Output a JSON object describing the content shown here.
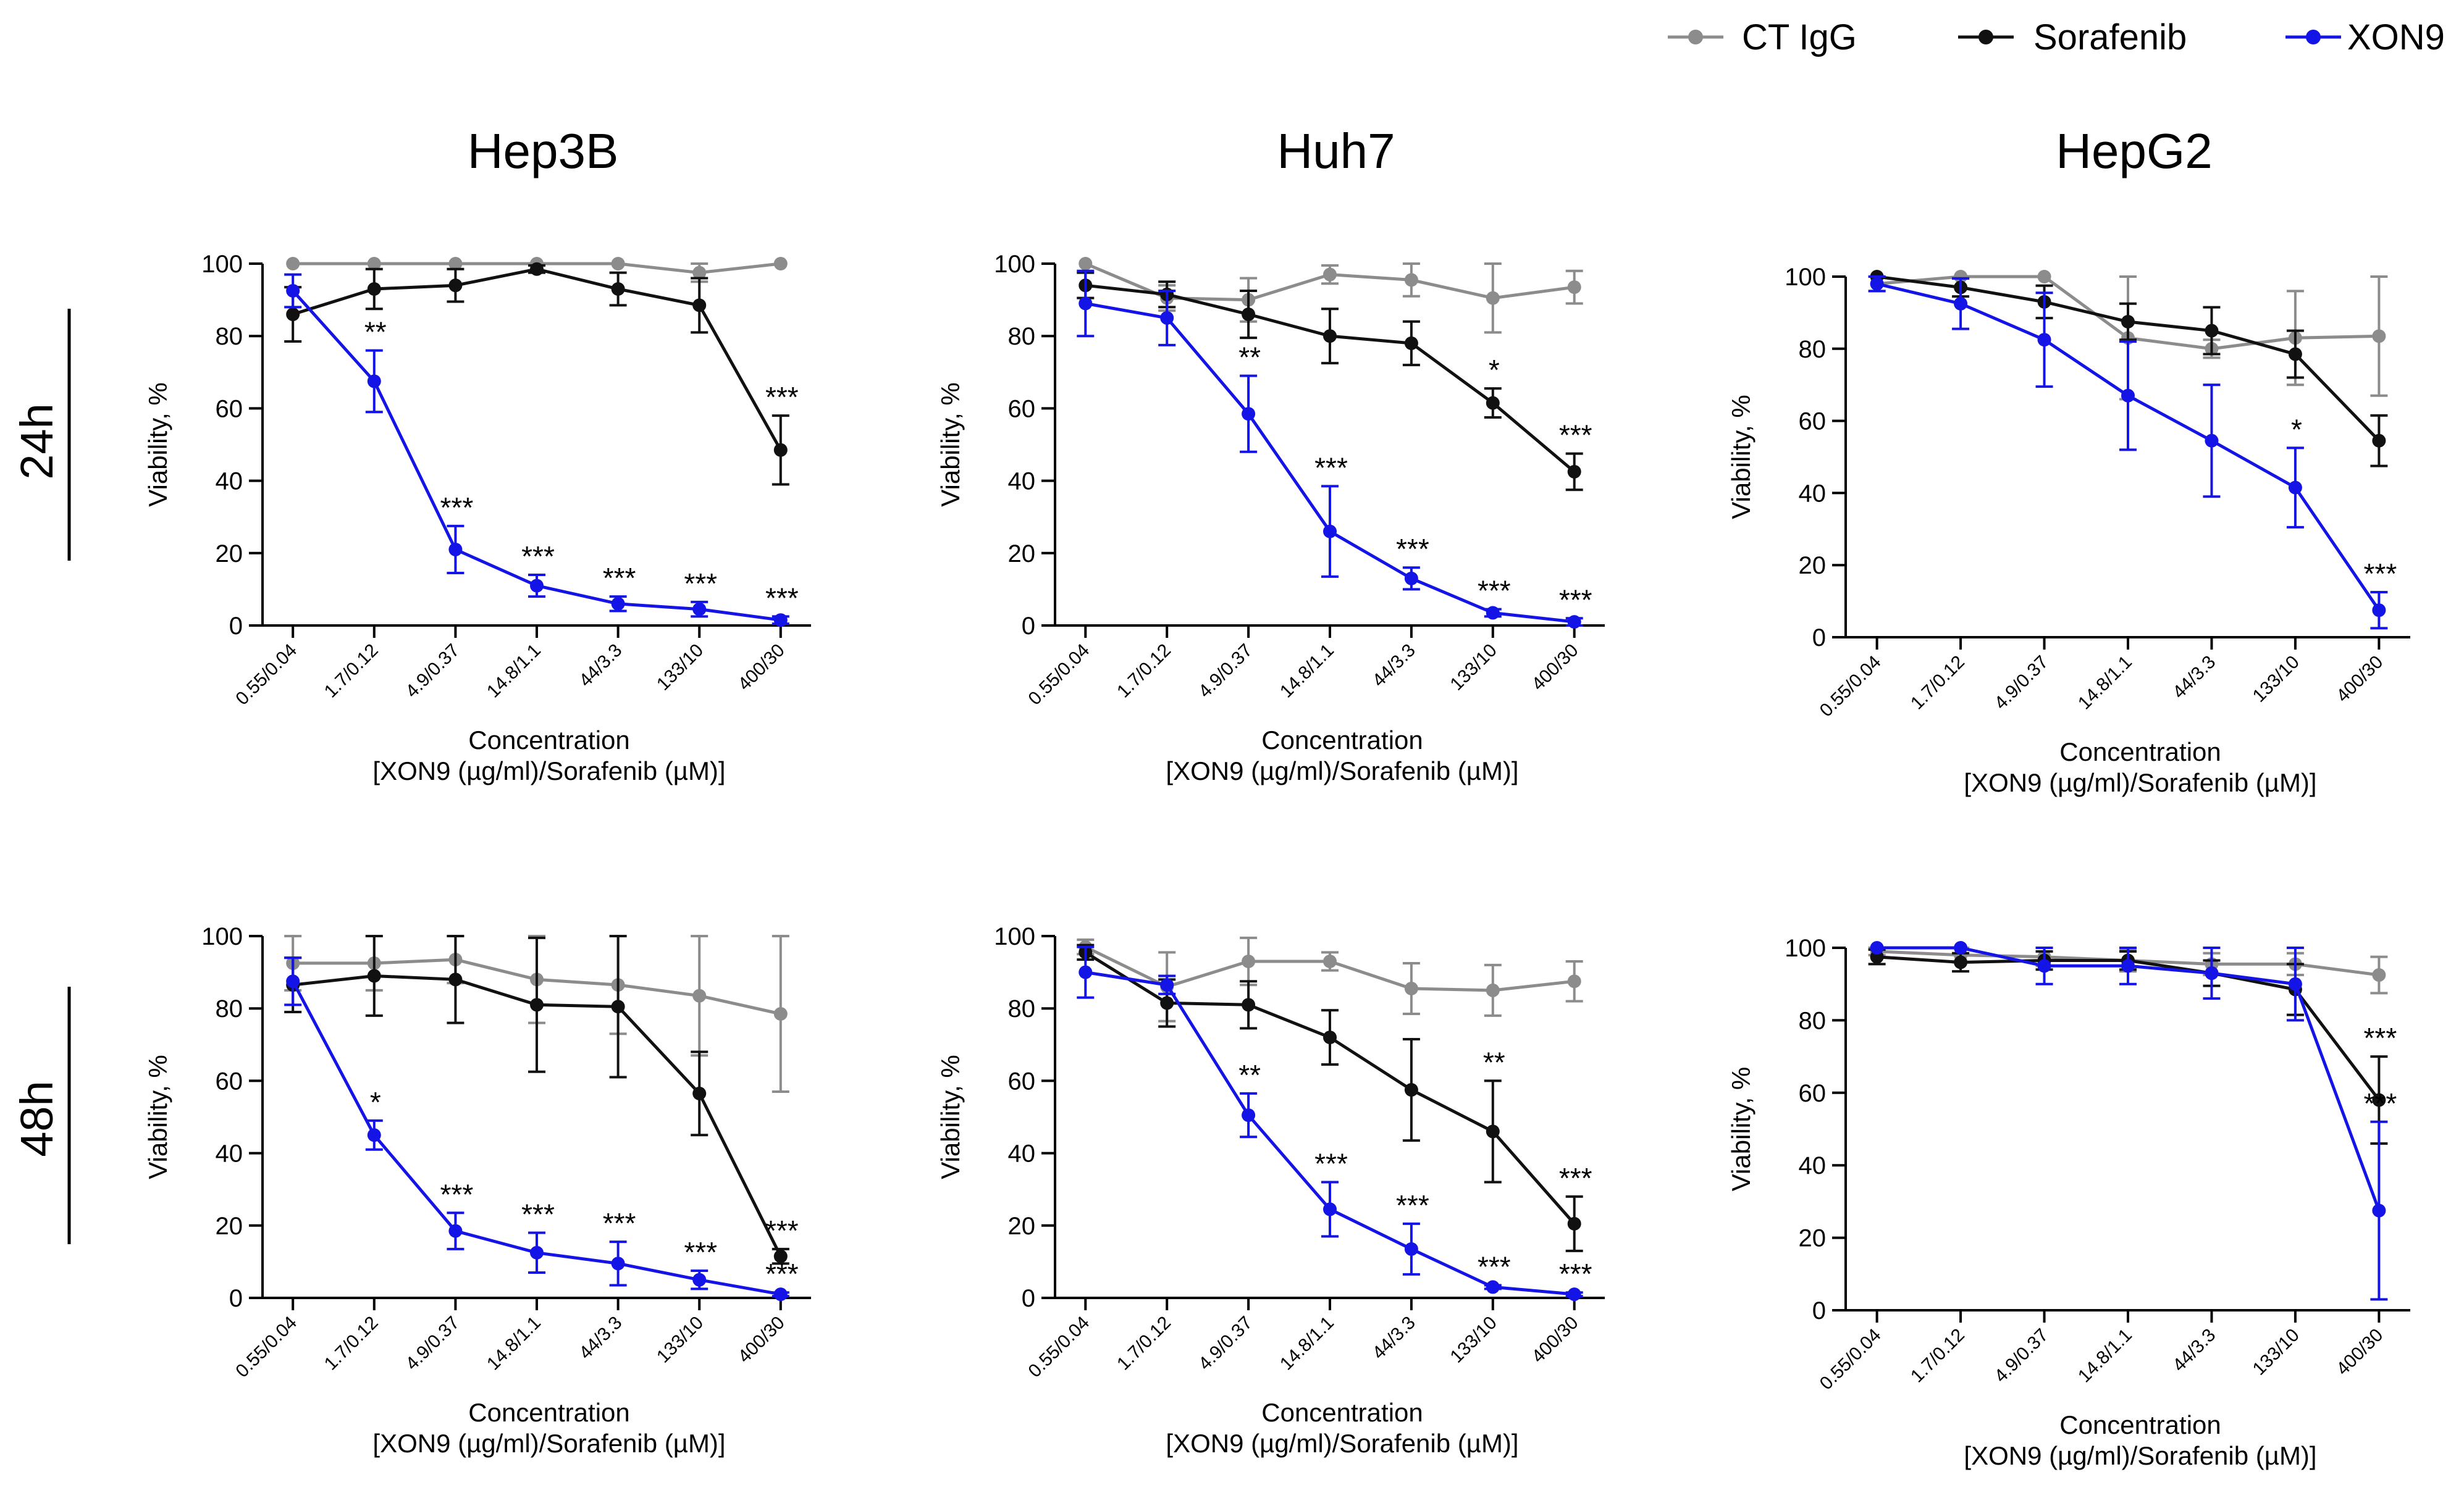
{
  "legend": [
    {
      "series": "ct",
      "label": "CT IgG"
    },
    {
      "series": "sor",
      "label": "Sorafenib"
    },
    {
      "series": "xon",
      "label": "XON9"
    }
  ],
  "colors": {
    "ct": "#8c8c8c",
    "sor": "#111111",
    "xon": "#1414e6",
    "axis": "#000000"
  },
  "row_labels": [
    "24h",
    "48h"
  ],
  "chart_data": [
    {
      "type": "line",
      "panel": "Hep3B-24h",
      "title": "Hep3B",
      "ylabel": "Viability, %",
      "xlabel": "Concentration",
      "xlabel2": "[XON9 (µg/ml)/Sorafenib (µM)]",
      "categories": [
        "0.55/0.04",
        "1.7/0.12",
        "4.9/0.37",
        "14.8/1.1",
        "44/3.3",
        "133/10",
        "400/30"
      ],
      "ylim": [
        0,
        100
      ],
      "yticks": [
        0,
        20,
        40,
        60,
        80,
        100
      ],
      "series": [
        {
          "name": "CT IgG",
          "key": "ct",
          "values": [
            100,
            100,
            100,
            100,
            100,
            97.5,
            100
          ],
          "errors": [
            0,
            0,
            0,
            0,
            0,
            2.5,
            0
          ]
        },
        {
          "name": "Sorafenib",
          "key": "sor",
          "values": [
            86,
            93,
            94,
            98.5,
            93,
            88.5,
            48.5
          ],
          "errors": [
            7.5,
            5.5,
            4.5,
            1,
            4.5,
            7.5,
            9.5
          ]
        },
        {
          "name": "XON9",
          "key": "xon",
          "values": [
            92.5,
            67.5,
            21,
            11,
            6,
            4.5,
            1.5
          ],
          "errors": [
            4.5,
            8.5,
            6.5,
            3,
            2,
            2,
            1
          ]
        }
      ],
      "annotations": [
        {
          "index": 1,
          "series": "xon",
          "text": "**"
        },
        {
          "index": 2,
          "series": "xon",
          "text": "***"
        },
        {
          "index": 3,
          "series": "xon",
          "text": "***"
        },
        {
          "index": 4,
          "series": "xon",
          "text": "***"
        },
        {
          "index": 5,
          "series": "xon",
          "text": "***"
        },
        {
          "index": 6,
          "series": "xon",
          "text": "***"
        },
        {
          "index": 6,
          "series": "sor",
          "text": "***"
        }
      ]
    },
    {
      "type": "line",
      "panel": "Huh7-24h",
      "title": "Huh7",
      "ylabel": "Viability, %",
      "xlabel": "Concentration",
      "xlabel2": "[XON9 (µg/ml)/Sorafenib (µM)]",
      "categories": [
        "0.55/0.04",
        "1.7/0.12",
        "4.9/0.37",
        "14.8/1.1",
        "44/3.3",
        "133/10",
        "400/30"
      ],
      "ylim": [
        0,
        100
      ],
      "yticks": [
        0,
        20,
        40,
        60,
        80,
        100
      ],
      "series": [
        {
          "name": "CT IgG",
          "key": "ct",
          "values": [
            100,
            90.5,
            90,
            97,
            95.5,
            90.5,
            93.5
          ],
          "errors": [
            0,
            3.5,
            6,
            2.5,
            4.5,
            9.5,
            4.5
          ]
        },
        {
          "name": "Sorafenib",
          "key": "sor",
          "values": [
            94,
            91.5,
            86,
            80,
            78,
            61.5,
            42.5
          ],
          "errors": [
            3.5,
            3.5,
            6.5,
            7.5,
            6,
            4,
            5
          ]
        },
        {
          "name": "XON9",
          "key": "xon",
          "values": [
            89,
            85,
            58.5,
            26,
            13,
            3.5,
            1
          ],
          "errors": [
            9,
            7.5,
            10.5,
            12.5,
            3,
            1,
            1
          ]
        }
      ],
      "annotations": [
        {
          "index": 2,
          "series": "xon",
          "text": "**"
        },
        {
          "index": 3,
          "series": "xon",
          "text": "***"
        },
        {
          "index": 4,
          "series": "xon",
          "text": "***"
        },
        {
          "index": 5,
          "series": "sor",
          "text": "*"
        },
        {
          "index": 5,
          "series": "xon",
          "text": "***"
        },
        {
          "index": 6,
          "series": "sor",
          "text": "***"
        },
        {
          "index": 6,
          "series": "xon",
          "text": "***"
        }
      ]
    },
    {
      "type": "line",
      "panel": "HepG2-24h",
      "title": "HepG2",
      "ylabel": "Viability, %",
      "xlabel": "Concentration",
      "xlabel2": "[XON9 (µg/ml)/Sorafenib (µM)]",
      "categories": [
        "0.55/0.04",
        "1.7/0.12",
        "4.9/0.37",
        "14.8/1.1",
        "44/3.3",
        "133/10",
        "400/30"
      ],
      "ylim": [
        0,
        100
      ],
      "yticks": [
        0,
        20,
        40,
        60,
        80,
        100
      ],
      "series": [
        {
          "name": "CT IgG",
          "key": "ct",
          "values": [
            98,
            100,
            100,
            83,
            80,
            83,
            83.5
          ],
          "errors": [
            2,
            0,
            0,
            17,
            2.5,
            13,
            16.5
          ]
        },
        {
          "name": "Sorafenib",
          "key": "sor",
          "values": [
            100,
            97,
            93,
            87.5,
            85,
            78.5,
            54.5
          ],
          "errors": [
            0,
            2.5,
            4.5,
            5,
            6.5,
            6.5,
            7
          ]
        },
        {
          "name": "XON9",
          "key": "xon",
          "values": [
            98,
            92.5,
            82.5,
            67,
            54.5,
            41.5,
            7.5
          ],
          "errors": [
            2,
            7,
            13,
            15,
            15.5,
            11,
            5
          ]
        }
      ],
      "annotations": [
        {
          "index": 5,
          "series": "xon",
          "text": "*"
        },
        {
          "index": 6,
          "series": "xon",
          "text": "***"
        }
      ]
    },
    {
      "type": "line",
      "panel": "Hep3B-48h",
      "title": "Hep3B",
      "ylabel": "Viability, %",
      "xlabel": "Concentration",
      "xlabel2": "[XON9 (µg/ml)/Sorafenib (µM)]",
      "categories": [
        "0.55/0.04",
        "1.7/0.12",
        "4.9/0.37",
        "14.8/1.1",
        "44/3.3",
        "133/10",
        "400/30"
      ],
      "ylim": [
        0,
        100
      ],
      "yticks": [
        0,
        20,
        40,
        60,
        80,
        100
      ],
      "series": [
        {
          "name": "CT IgG",
          "key": "ct",
          "values": [
            92.5,
            92.5,
            93.5,
            88,
            86.5,
            83.5,
            78.5
          ],
          "errors": [
            7.5,
            7.5,
            6.5,
            12,
            13.5,
            16.5,
            21.5
          ]
        },
        {
          "name": "Sorafenib",
          "key": "sor",
          "values": [
            86.5,
            89,
            88,
            81,
            80.5,
            56.5,
            11.5
          ],
          "errors": [
            7.5,
            11,
            12,
            18.5,
            19.5,
            11.5,
            2
          ]
        },
        {
          "name": "XON9",
          "key": "xon",
          "values": [
            87.5,
            45,
            18.5,
            12.5,
            9.5,
            5,
            1
          ],
          "errors": [
            6.5,
            4,
            5,
            5.5,
            6,
            2.5,
            0.5
          ]
        }
      ],
      "annotations": [
        {
          "index": 1,
          "series": "xon",
          "text": "*"
        },
        {
          "index": 2,
          "series": "xon",
          "text": "***"
        },
        {
          "index": 3,
          "series": "xon",
          "text": "***"
        },
        {
          "index": 4,
          "series": "xon",
          "text": "***"
        },
        {
          "index": 5,
          "series": "xon",
          "text": "***"
        },
        {
          "index": 6,
          "series": "sor",
          "text": "***"
        },
        {
          "index": 6,
          "series": "xon",
          "text": "***"
        }
      ]
    },
    {
      "type": "line",
      "panel": "Huh7-48h",
      "title": "Huh7",
      "ylabel": "Viability, %",
      "xlabel": "Concentration",
      "xlabel2": "[XON9 (µg/ml)/Sorafenib (µM)]",
      "categories": [
        "0.55/0.04",
        "1.7/0.12",
        "4.9/0.37",
        "14.8/1.1",
        "44/3.3",
        "133/10",
        "400/30"
      ],
      "ylim": [
        0,
        100
      ],
      "yticks": [
        0,
        20,
        40,
        60,
        80,
        100
      ],
      "series": [
        {
          "name": "CT IgG",
          "key": "ct",
          "values": [
            97,
            86,
            93,
            93,
            85.5,
            85,
            87.5
          ],
          "errors": [
            2,
            9.5,
            6.5,
            2.5,
            7,
            7,
            5.5
          ]
        },
        {
          "name": "Sorafenib",
          "key": "sor",
          "values": [
            95.5,
            81.5,
            81,
            72,
            57.5,
            46,
            20.5
          ],
          "errors": [
            2,
            6.5,
            6.5,
            7.5,
            14,
            14,
            7.5
          ]
        },
        {
          "name": "XON9",
          "key": "xon",
          "values": [
            90,
            86.5,
            50.5,
            24.5,
            13.5,
            3,
            1
          ],
          "errors": [
            7,
            2.5,
            6,
            7.5,
            7,
            0.5,
            0.5
          ]
        }
      ],
      "annotations": [
        {
          "index": 2,
          "series": "xon",
          "text": "**"
        },
        {
          "index": 3,
          "series": "xon",
          "text": "***"
        },
        {
          "index": 4,
          "series": "xon",
          "text": "***"
        },
        {
          "index": 5,
          "series": "sor",
          "text": "**"
        },
        {
          "index": 5,
          "series": "xon",
          "text": "***"
        },
        {
          "index": 6,
          "series": "sor",
          "text": "***"
        },
        {
          "index": 6,
          "series": "xon",
          "text": "***"
        }
      ]
    },
    {
      "type": "line",
      "panel": "HepG2-48h",
      "title": "HepG2",
      "ylabel": "Viability, %",
      "xlabel": "Concentration",
      "xlabel2": "[XON9 (µg/ml)/Sorafenib (µM)]",
      "categories": [
        "0.55/0.04",
        "1.7/0.12",
        "4.9/0.37",
        "14.8/1.1",
        "44/3.3",
        "133/10",
        "400/30"
      ],
      "ylim": [
        0,
        100
      ],
      "yticks": [
        0,
        20,
        40,
        60,
        80,
        100
      ],
      "series": [
        {
          "name": "CT IgG",
          "key": "ct",
          "values": [
            99,
            98,
            97.5,
            96.5,
            95.5,
            95.5,
            92.5
          ],
          "errors": [
            1,
            2,
            2.5,
            3,
            3,
            3,
            5
          ]
        },
        {
          "name": "Sorafenib",
          "key": "sor",
          "values": [
            97.5,
            96,
            96.5,
            96.5,
            93,
            88.5,
            58
          ],
          "errors": [
            2,
            2.5,
            2.5,
            2.5,
            3.5,
            7,
            12
          ]
        },
        {
          "name": "XON9",
          "key": "xon",
          "values": [
            100,
            100,
            95,
            95,
            93,
            90,
            27.5
          ],
          "errors": [
            0,
            0,
            5,
            5,
            7,
            10,
            24.5
          ]
        }
      ],
      "annotations": [
        {
          "index": 6,
          "series": "sor",
          "text": "***"
        },
        {
          "index": 6,
          "series": "xon",
          "text": "***"
        }
      ]
    }
  ]
}
